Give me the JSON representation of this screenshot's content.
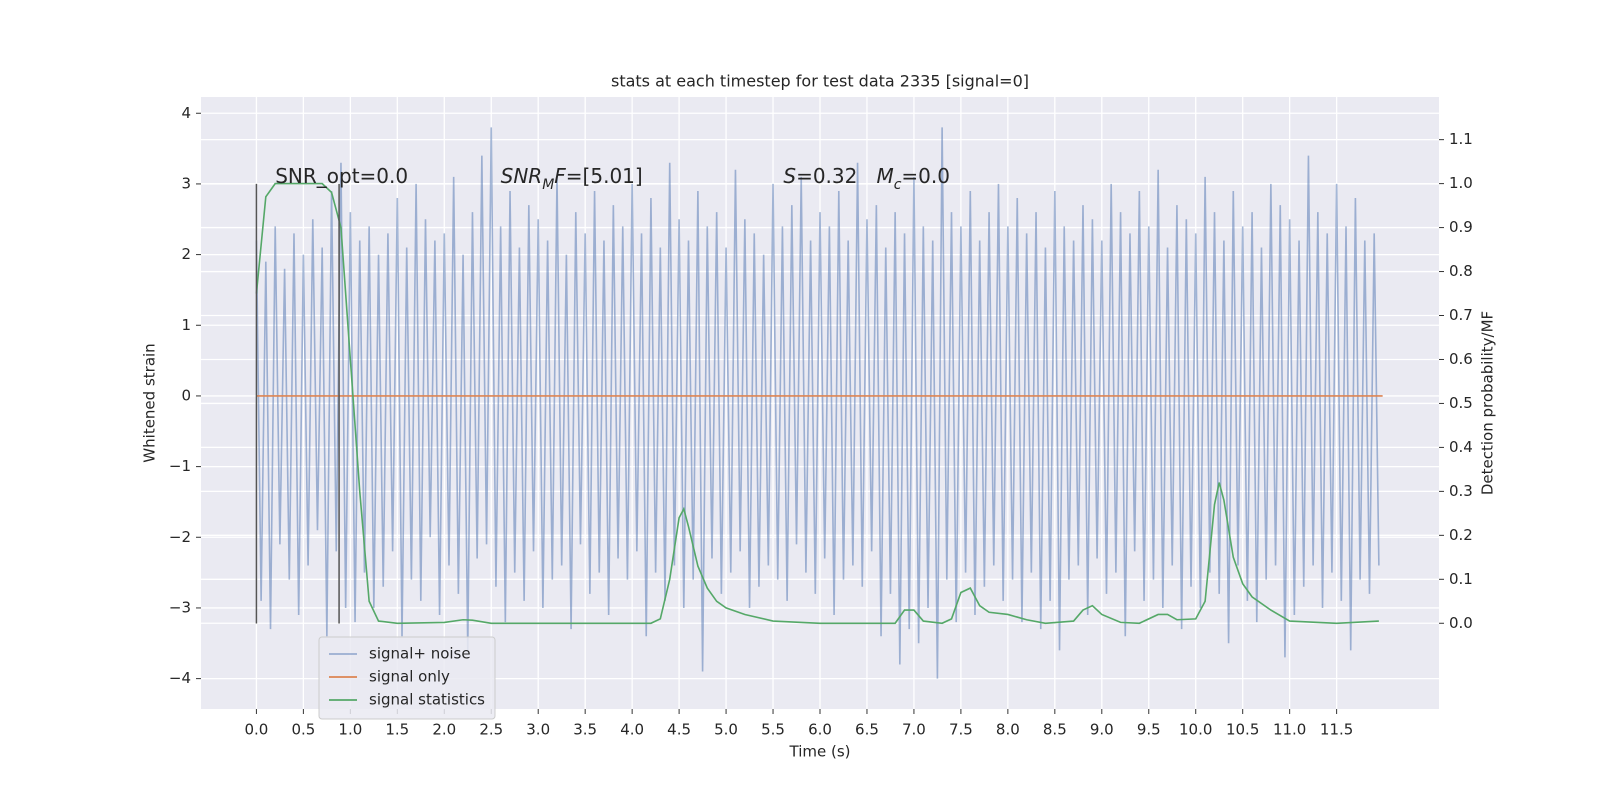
{
  "chart_data": {
    "type": "line",
    "title": "stats at each timestep for test data 2335 [signal=0]",
    "xlabel": "Time (s)",
    "ylabel": "Whitened strain",
    "y2label": "Detection probability/MF",
    "xlim": [
      -0.59,
      12.59
    ],
    "ylim": [
      -4.43,
      4.23
    ],
    "y2lim": [
      -0.195,
      1.197
    ],
    "xticks": [
      {
        "value": 0,
        "label": "0.0"
      },
      0.5,
      {
        "value": 1,
        "label": "1.0"
      },
      1.5,
      {
        "value": 2,
        "label": "2.0"
      },
      2.5,
      {
        "value": 3,
        "label": "3.0"
      },
      3.5,
      {
        "value": 4,
        "label": "4.0"
      },
      4.5,
      {
        "value": 5,
        "label": "5.0"
      },
      5.5,
      {
        "value": 6,
        "label": "6.0"
      },
      6.5,
      {
        "value": 7,
        "label": "7.0"
      },
      7.5,
      {
        "value": 8,
        "label": "8.0"
      },
      8.5,
      {
        "value": 9,
        "label": "9.0"
      },
      9.5,
      {
        "value": 10,
        "label": "10.0"
      },
      10.5,
      {
        "value": 11,
        "label": "11.0"
      },
      11.5
    ],
    "yticks": [
      {
        "value": -4,
        "label": "−4"
      },
      {
        "value": -3,
        "label": "−3"
      },
      {
        "value": -2,
        "label": "−2"
      },
      {
        "value": -1,
        "label": "−1"
      },
      0,
      1,
      2,
      3,
      4
    ],
    "y2ticks": [
      {
        "value": 0,
        "label": "0.0"
      },
      0.1,
      0.2,
      0.3,
      0.4,
      0.5,
      0.6,
      0.7,
      0.8,
      0.9,
      {
        "value": 1,
        "label": "1.0"
      },
      1.1
    ],
    "grid": true,
    "background": "#eaeaf2",
    "legend_loc": "lower left",
    "series": [
      {
        "name": "signal+ noise",
        "color": "#4c72b0",
        "alpha": 0.5,
        "x": [
          0,
          0.05,
          0.1,
          0.15,
          0.2,
          0.25,
          0.3,
          0.35,
          0.4,
          0.45,
          0.5,
          0.55,
          0.6,
          0.65,
          0.7,
          0.75,
          0.8,
          0.85,
          0.9,
          0.95,
          1,
          1.05,
          1.1,
          1.15,
          1.2,
          1.25,
          1.3,
          1.35,
          1.4,
          1.45,
          1.5,
          1.55,
          1.6,
          1.65,
          1.7,
          1.75,
          1.8,
          1.85,
          1.9,
          1.95,
          2,
          2.05,
          2.1,
          2.15,
          2.2,
          2.25,
          2.3,
          2.35,
          2.4,
          2.45,
          2.5,
          2.55,
          2.6,
          2.65,
          2.7,
          2.75,
          2.8,
          2.85,
          2.9,
          2.95,
          3,
          3.05,
          3.1,
          3.15,
          3.2,
          3.25,
          3.3,
          3.35,
          3.4,
          3.45,
          3.5,
          3.55,
          3.6,
          3.65,
          3.7,
          3.75,
          3.8,
          3.85,
          3.9,
          3.95,
          4,
          4.05,
          4.1,
          4.15,
          4.2,
          4.25,
          4.3,
          4.35,
          4.4,
          4.45,
          4.5,
          4.55,
          4.6,
          4.65,
          4.7,
          4.75,
          4.8,
          4.85,
          4.9,
          4.95,
          5,
          5.05,
          5.1,
          5.15,
          5.2,
          5.25,
          5.3,
          5.35,
          5.4,
          5.45,
          5.5,
          5.55,
          5.6,
          5.65,
          5.7,
          5.75,
          5.8,
          5.85,
          5.9,
          5.95,
          6,
          6.05,
          6.1,
          6.15,
          6.2,
          6.25,
          6.3,
          6.35,
          6.4,
          6.45,
          6.5,
          6.55,
          6.6,
          6.65,
          6.7,
          6.75,
          6.8,
          6.85,
          6.9,
          6.95,
          7,
          7.05,
          7.1,
          7.15,
          7.2,
          7.25,
          7.3,
          7.35,
          7.4,
          7.45,
          7.5,
          7.55,
          7.6,
          7.65,
          7.7,
          7.75,
          7.8,
          7.85,
          7.9,
          7.95,
          8,
          8.05,
          8.1,
          8.15,
          8.2,
          8.25,
          8.3,
          8.35,
          8.4,
          8.45,
          8.5,
          8.55,
          8.6,
          8.65,
          8.7,
          8.75,
          8.8,
          8.85,
          8.9,
          8.95,
          9,
          9.05,
          9.1,
          9.15,
          9.2,
          9.25,
          9.3,
          9.35,
          9.4,
          9.45,
          9.5,
          9.55,
          9.6,
          9.65,
          9.7,
          9.75,
          9.8,
          9.85,
          9.9,
          9.95,
          10,
          10.05,
          10.1,
          10.15,
          10.2,
          10.25,
          10.3,
          10.35,
          10.4,
          10.45,
          10.5,
          10.55,
          10.6,
          10.65,
          10.7,
          10.75,
          10.8,
          10.85,
          10.9,
          10.95,
          11,
          11.05,
          11.1,
          11.15,
          11.2,
          11.25,
          11.3,
          11.35,
          11.4,
          11.45,
          11.5,
          11.55,
          11.6,
          11.65,
          11.7,
          11.75,
          11.8,
          11.85,
          11.9,
          11.95
        ],
        "values": [
          2.2,
          -2.9,
          1.9,
          -3.3,
          2.4,
          -2.1,
          1.8,
          -2.6,
          2.3,
          -3.1,
          2.0,
          -2.4,
          2.5,
          -1.9,
          2.1,
          -3.4,
          2.9,
          -2.2,
          3.3,
          -3.0,
          2.6,
          -3.2,
          2.2,
          -2.5,
          2.4,
          -3.0,
          2.0,
          -2.7,
          2.3,
          -2.2,
          2.8,
          -3.4,
          2.1,
          -2.6,
          3.0,
          -2.9,
          2.5,
          -2.0,
          2.2,
          -3.1,
          2.3,
          -2.4,
          3.1,
          -2.8,
          2.0,
          -3.6,
          2.6,
          -2.3,
          3.4,
          -2.1,
          3.8,
          -2.7,
          2.4,
          -3.2,
          2.9,
          -2.5,
          2.1,
          -2.9,
          2.7,
          -2.2,
          2.5,
          -3.0,
          2.2,
          -2.6,
          3.1,
          -2.4,
          2.0,
          -3.3,
          2.6,
          -2.1,
          2.3,
          -2.8,
          2.9,
          -2.5,
          2.2,
          -3.1,
          2.7,
          -2.3,
          2.4,
          -2.6,
          3.0,
          -2.2,
          2.3,
          -3.4,
          2.8,
          -2.5,
          2.1,
          -2.9,
          3.3,
          -2.4,
          2.5,
          -3.0,
          2.2,
          -2.6,
          2.9,
          -3.9,
          2.4,
          -2.3,
          2.6,
          -2.8,
          2.1,
          -2.5,
          3.2,
          -2.2,
          2.5,
          -3.0,
          2.3,
          -2.7,
          2.0,
          -2.4,
          3.0,
          -2.6,
          2.4,
          -2.9,
          2.7,
          -2.1,
          3.1,
          -2.5,
          2.2,
          -2.8,
          2.6,
          -2.3,
          2.4,
          -3.1,
          2.9,
          -2.6,
          2.2,
          -2.4,
          3.3,
          -2.7,
          2.5,
          -2.2,
          2.7,
          -3.4,
          2.1,
          -2.8,
          2.6,
          -3.8,
          2.3,
          -3.3,
          3.1,
          -3.5,
          2.4,
          -3.0,
          2.2,
          -4.0,
          3.8,
          -2.6,
          2.6,
          -3.2,
          2.4,
          -2.5,
          2.9,
          -3.1,
          2.2,
          -2.7,
          2.6,
          -2.4,
          3.0,
          -2.9,
          2.4,
          -2.6,
          2.8,
          -3.2,
          2.3,
          -2.5,
          2.6,
          -3.3,
          2.1,
          -2.9,
          2.9,
          -3.6,
          2.4,
          -2.6,
          2.2,
          -2.4,
          2.7,
          -3.1,
          2.5,
          -2.3,
          2.2,
          -2.8,
          3.0,
          -2.5,
          2.6,
          -3.4,
          2.3,
          -2.2,
          2.9,
          -2.9,
          2.4,
          -2.6,
          3.2,
          -3.0,
          2.1,
          -2.4,
          2.7,
          -3.3,
          2.5,
          -2.7,
          2.3,
          -3.0,
          3.1,
          -2.5,
          2.6,
          -2.8,
          2.2,
          -3.5,
          2.9,
          -2.4,
          2.4,
          -2.9,
          2.6,
          -3.2,
          2.1,
          -2.6,
          3.0,
          -2.4,
          2.7,
          -3.7,
          2.5,
          -3.1,
          2.2,
          -2.7,
          3.4,
          -2.4,
          2.6,
          -3.0,
          2.3,
          -2.5,
          3.0,
          -2.9,
          2.4,
          -3.6,
          2.8,
          -2.6,
          2.2,
          -2.8,
          2.3,
          -2.4
        ]
      },
      {
        "name": "signal only",
        "color": "#dd8452",
        "alpha": 1,
        "x": [
          0,
          11.99
        ],
        "values": [
          0,
          0
        ]
      },
      {
        "name": "signal statistics",
        "color": "#55a868",
        "alpha": 1,
        "axis": "y2",
        "x": [
          0,
          0.1,
          0.2,
          0.7,
          0.8,
          0.9,
          1.0,
          1.1,
          1.2,
          1.3,
          1.5,
          2.0,
          2.2,
          2.3,
          2.5,
          4.2,
          4.3,
          4.4,
          4.5,
          4.55,
          4.6,
          4.7,
          4.8,
          4.9,
          5.0,
          5.2,
          5.5,
          6.0,
          6.8,
          6.9,
          7.0,
          7.1,
          7.3,
          7.4,
          7.5,
          7.6,
          7.7,
          7.8,
          8.0,
          8.2,
          8.4,
          8.7,
          8.8,
          8.9,
          9.0,
          9.2,
          9.4,
          9.6,
          9.7,
          9.8,
          10.0,
          10.1,
          10.2,
          10.25,
          10.3,
          10.4,
          10.5,
          10.6,
          10.8,
          11.0,
          11.5,
          11.95
        ],
        "values": [
          0.75,
          0.97,
          1.0,
          1.0,
          0.98,
          0.9,
          0.6,
          0.3,
          0.05,
          0.005,
          0.0,
          0.002,
          0.008,
          0.007,
          0.0,
          0.0,
          0.01,
          0.1,
          0.24,
          0.26,
          0.22,
          0.13,
          0.08,
          0.05,
          0.035,
          0.02,
          0.005,
          0.0,
          0.0,
          0.03,
          0.03,
          0.005,
          0.0,
          0.01,
          0.07,
          0.08,
          0.04,
          0.025,
          0.02,
          0.008,
          0.0,
          0.005,
          0.03,
          0.04,
          0.02,
          0.002,
          0.0,
          0.02,
          0.02,
          0.008,
          0.01,
          0.05,
          0.27,
          0.32,
          0.28,
          0.15,
          0.09,
          0.06,
          0.03,
          0.005,
          0.0,
          0.005
        ]
      }
    ],
    "vlines": {
      "x": [
        0,
        0.88
      ],
      "ymin": -3.22,
      "ymax": 3.0,
      "color": "#555555"
    },
    "annotations": [
      {
        "x": 0.2,
        "y": 3.1,
        "parts": [
          {
            "text": "SNR_opt=0.0"
          }
        ]
      },
      {
        "x": 2.6,
        "y": 3.1,
        "parts": [
          {
            "text": "SNR",
            "italic": true
          },
          {
            "text": "M",
            "italic": true,
            "sub": true
          },
          {
            "text": "F",
            "italic": true
          },
          {
            "text": "=[5.01]"
          }
        ]
      },
      {
        "x": 5.61,
        "y": 3.1,
        "parts": [
          {
            "text": "S",
            "italic": true
          },
          {
            "text": "=0.32   "
          },
          {
            "text": "M",
            "italic": true
          },
          {
            "text": "c",
            "italic": true,
            "sub": true
          },
          {
            "text": "=0.0"
          }
        ]
      }
    ]
  }
}
